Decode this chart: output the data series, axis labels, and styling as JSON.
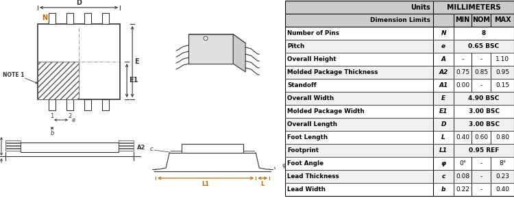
{
  "table_rows": [
    [
      "Number of Pins",
      "N",
      "8",
      "",
      ""
    ],
    [
      "Pitch",
      "e",
      "0.65 BSC",
      "",
      ""
    ],
    [
      "Overall Height",
      "A",
      "-",
      "-",
      "1.10"
    ],
    [
      "Molded Package Thickness",
      "A2",
      "0.75",
      "0.85",
      "0.95"
    ],
    [
      "Standoff",
      "A1",
      "0.00",
      "-",
      "0.15"
    ],
    [
      "Overall Width",
      "E",
      "4.90 BSC",
      "",
      ""
    ],
    [
      "Molded Package Width",
      "E1",
      "3.00 BSC",
      "",
      ""
    ],
    [
      "Overall Length",
      "D",
      "3.00 BSC",
      "",
      ""
    ],
    [
      "Foot Length",
      "L",
      "0.40",
      "0.60",
      "0.80"
    ],
    [
      "Footprint",
      "L1",
      "0.95 REF",
      "",
      ""
    ],
    [
      "Foot Angle",
      "φ",
      "0°",
      "-",
      "8°"
    ],
    [
      "Lead Thickness",
      "c",
      "0.08",
      "-",
      "0.23"
    ],
    [
      "Lead Width",
      "b",
      "0.22",
      "-",
      "0.40"
    ]
  ],
  "merged_rows": [
    0,
    1,
    5,
    6,
    7,
    9
  ],
  "bg_color": "#ffffff",
  "line_color": "#000000",
  "gray_color": "#c8c8c8",
  "draw_color": "#333333",
  "orange_color": "#cc6600"
}
